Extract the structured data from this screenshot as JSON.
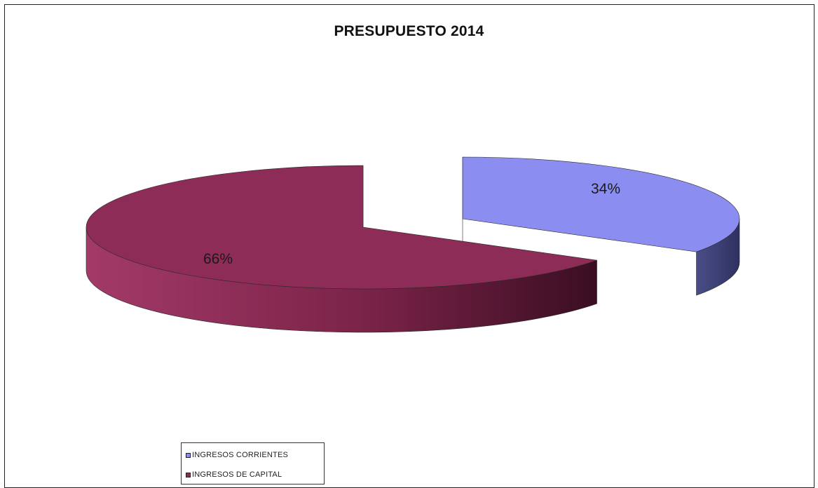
{
  "chart_data": {
    "type": "pie",
    "title": "PRESUPUESTO 2014",
    "categories": [
      "INGRESOS CORRIENTES",
      "INGRESOS DE CAPITAL"
    ],
    "values": [
      34,
      66
    ],
    "data_labels": [
      "34%",
      "66%"
    ],
    "colors": [
      "#8b8ef0",
      "#8e2c58"
    ],
    "side_colors": [
      "#3c3f70",
      "#6e1d41"
    ],
    "style": "3d-exploded",
    "legend_position": "bottom-left"
  }
}
